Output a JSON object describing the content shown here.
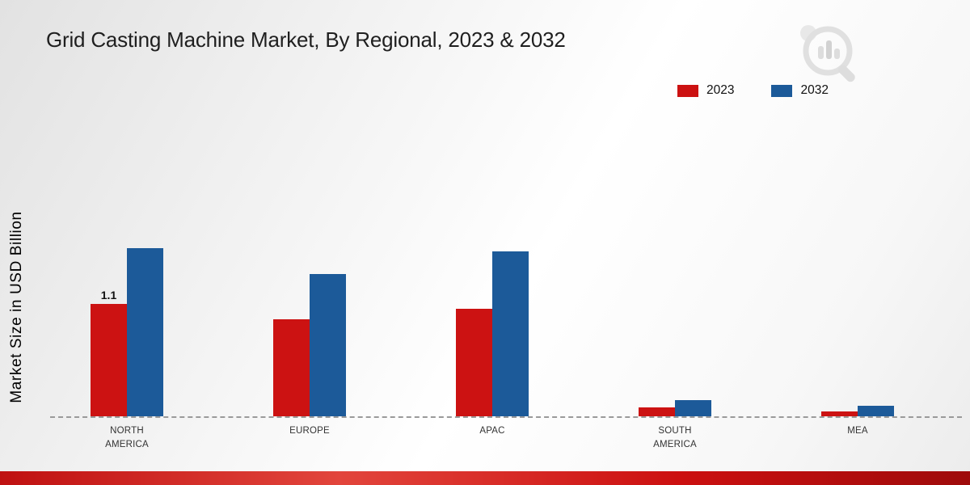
{
  "title": "Grid Casting Machine Market, By Regional, 2023 & 2032",
  "y_axis": {
    "label": "Market Size in USD Billion"
  },
  "brand": {
    "logo_icon": "magnifier-bar-chart-icon"
  },
  "footer": {
    "color": "#c21212"
  },
  "chart_data": {
    "type": "bar",
    "title": "Grid Casting Machine Market, By Regional, 2023 & 2032",
    "xlabel": "",
    "ylabel": "Market Size in USD Billion",
    "categories": [
      "NORTH\nAMERICA",
      "EUROPE",
      "APAC",
      "SOUTH\nAMERICA",
      "MEA"
    ],
    "series": [
      {
        "name": "2023",
        "color": "#cc1212",
        "values": [
          1.1,
          0.95,
          1.05,
          0.09,
          0.05
        ]
      },
      {
        "name": "2032",
        "color": "#1c5a99",
        "values": [
          1.64,
          1.39,
          1.61,
          0.16,
          0.1
        ]
      }
    ],
    "data_labels": [
      {
        "series": 0,
        "index": 0,
        "text": "1.1"
      }
    ],
    "ylim": [
      0,
      2.25
    ],
    "grid": false,
    "legend_position": "top-right",
    "baseline_style": "dashed"
  }
}
